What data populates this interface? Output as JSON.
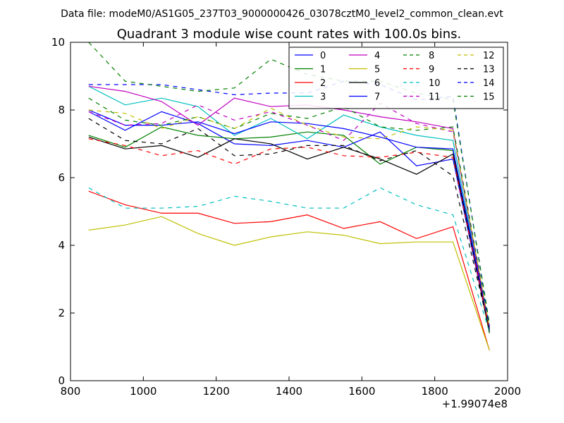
{
  "chart_data": {
    "type": "line",
    "suptitle": "Data file: modeM0/AS1G05_237T03_9000000426_03078cztM0_level2_common_clean.evt",
    "title": "Quadrant 3 module wise count rates with 100.0s bins.",
    "xlabel": "",
    "ylabel": "",
    "x_offset_label": "+1.99074e8",
    "xlim": [
      800,
      2000
    ],
    "ylim": [
      0,
      10
    ],
    "xticks": [
      800,
      1000,
      1200,
      1400,
      1600,
      1800,
      2000
    ],
    "yticks": [
      0,
      2,
      4,
      6,
      8,
      10
    ],
    "legend_position": "top-right",
    "x": [
      850,
      950,
      1050,
      1150,
      1250,
      1350,
      1450,
      1550,
      1650,
      1750,
      1850,
      1950
    ],
    "series": [
      {
        "name": "0",
        "color": "#0000ff",
        "dash": "solid",
        "values": [
          7.95,
          7.4,
          7.95,
          7.6,
          7.0,
          6.95,
          7.1,
          6.9,
          7.35,
          6.35,
          6.55,
          1.45
        ]
      },
      {
        "name": "1",
        "color": "#008000",
        "dash": "solid",
        "values": [
          7.25,
          6.9,
          7.5,
          7.25,
          7.15,
          7.2,
          7.35,
          7.25,
          6.4,
          6.9,
          6.8,
          1.4
        ]
      },
      {
        "name": "2",
        "color": "#ff0000",
        "dash": "solid",
        "values": [
          5.6,
          5.2,
          4.95,
          4.95,
          4.65,
          4.7,
          4.9,
          4.5,
          4.7,
          4.2,
          4.55,
          0.9
        ]
      },
      {
        "name": "3",
        "color": "#00bfbf",
        "dash": "solid",
        "values": [
          8.7,
          8.15,
          8.35,
          8.1,
          7.25,
          7.75,
          7.15,
          7.85,
          7.5,
          7.25,
          7.1,
          1.5
        ]
      },
      {
        "name": "4",
        "color": "#bf00bf",
        "dash": "solid",
        "values": [
          8.7,
          8.55,
          8.25,
          7.55,
          8.35,
          8.1,
          8.15,
          8.0,
          7.8,
          7.65,
          7.45,
          1.45
        ]
      },
      {
        "name": "5",
        "color": "#bfbf00",
        "dash": "solid",
        "values": [
          4.45,
          4.6,
          4.85,
          4.35,
          4.0,
          4.25,
          4.4,
          4.3,
          4.05,
          4.1,
          4.1,
          0.9
        ]
      },
      {
        "name": "6",
        "color": "#000000",
        "dash": "solid",
        "values": [
          7.2,
          6.85,
          6.95,
          6.6,
          7.15,
          7.0,
          6.55,
          6.9,
          6.55,
          6.1,
          6.7,
          1.45
        ]
      },
      {
        "name": "7",
        "color": "#0000ff",
        "dash": "solid",
        "values": [
          8.0,
          7.55,
          7.55,
          7.65,
          7.3,
          7.65,
          7.6,
          7.45,
          7.2,
          6.9,
          6.85,
          1.55
        ]
      },
      {
        "name": "8",
        "color": "#008000",
        "dash": "dashed",
        "values": [
          8.35,
          7.7,
          7.55,
          7.8,
          7.45,
          7.9,
          7.75,
          8.1,
          7.5,
          7.4,
          7.5,
          1.6
        ]
      },
      {
        "name": "9",
        "color": "#ff0000",
        "dash": "dashed",
        "values": [
          7.15,
          6.95,
          6.65,
          6.8,
          6.4,
          6.85,
          6.9,
          6.65,
          6.6,
          6.75,
          6.6,
          1.5
        ]
      },
      {
        "name": "10",
        "color": "#00bfbf",
        "dash": "dashed",
        "values": [
          5.7,
          5.1,
          5.1,
          5.15,
          5.45,
          5.3,
          5.1,
          5.1,
          5.7,
          5.2,
          4.9,
          1.45
        ]
      },
      {
        "name": "11",
        "color": "#bf00bf",
        "dash": "dashed",
        "values": [
          7.95,
          7.55,
          7.6,
          8.15,
          7.7,
          7.95,
          7.55,
          7.1,
          8.2,
          7.6,
          7.35,
          1.55
        ]
      },
      {
        "name": "12",
        "color": "#bfbf00",
        "dash": "dashed",
        "values": [
          8.0,
          7.9,
          7.45,
          7.8,
          7.45,
          8.05,
          7.55,
          7.2,
          7.15,
          7.5,
          7.4,
          1.6
        ]
      },
      {
        "name": "13",
        "color": "#000000",
        "dash": "dashed",
        "values": [
          7.75,
          7.1,
          7.0,
          7.45,
          6.65,
          6.7,
          6.95,
          6.95,
          6.5,
          6.8,
          6.05,
          1.5
        ]
      },
      {
        "name": "14",
        "color": "#0000ff",
        "dash": "dashed",
        "values": [
          8.75,
          8.75,
          8.75,
          8.6,
          8.45,
          8.5,
          8.5,
          8.85,
          8.75,
          8.3,
          8.4,
          1.6
        ]
      },
      {
        "name": "15",
        "color": "#008000",
        "dash": "dashed",
        "values": [
          10.0,
          8.85,
          8.7,
          8.55,
          8.65,
          9.5,
          9.05,
          8.85,
          8.85,
          8.5,
          8.3,
          1.7
        ]
      }
    ]
  }
}
